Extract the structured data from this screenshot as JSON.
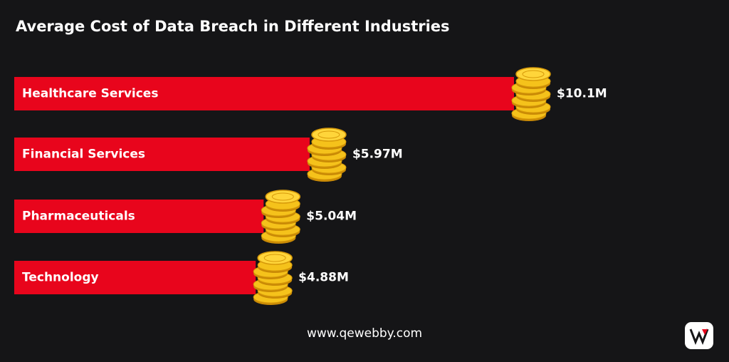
{
  "chart_data": {
    "type": "bar",
    "orientation": "horizontal",
    "title": "Average Cost of Data Breach in Different Industries",
    "categories": [
      "Healthcare Services",
      "Financial Services",
      "Pharmaceuticals",
      "Technology"
    ],
    "values": [
      10.1,
      5.97,
      5.04,
      4.88
    ],
    "value_labels": [
      "$10.1M",
      "$5.97M",
      "$5.04M",
      "$4.88M"
    ],
    "color": "#e8051c",
    "source": "www.qewebby.com"
  }
}
